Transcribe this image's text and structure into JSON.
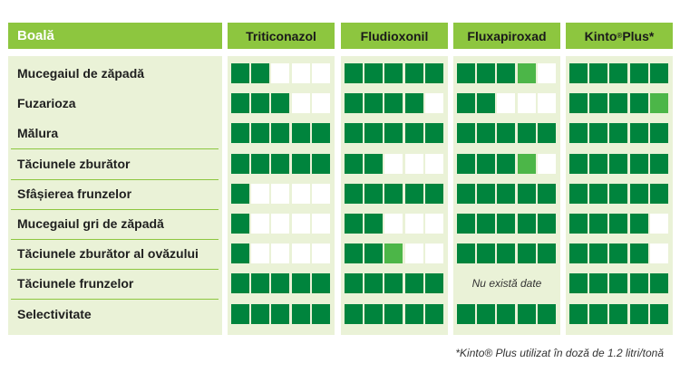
{
  "header": {
    "disease_label": "Boală",
    "products": [
      "Triticonazol",
      "Fludioxonil",
      "Fluxapiroxad",
      "Kinto® Plus*"
    ]
  },
  "rating_scale": {
    "max_blocks": 5
  },
  "colors": {
    "header_bg": "#8dc63f",
    "panel_bg": "#eaf2d7",
    "full": "#00843d",
    "partial": "#4cb648",
    "empty": "#ffffff"
  },
  "rows": [
    {
      "label": "Mucegaiul de zăpadă",
      "ratings": [
        2,
        5,
        3.5,
        5
      ]
    },
    {
      "label": "Fuzarioza",
      "ratings": [
        3,
        4,
        2,
        4.5
      ]
    },
    {
      "label": "Mălura",
      "ratings": [
        5,
        5,
        5,
        5
      ]
    },
    {
      "label": "Tăciunele zburător",
      "ratings": [
        5,
        2,
        3.5,
        5
      ]
    },
    {
      "label": "Sfâșierea frunzelor",
      "ratings": [
        1,
        5,
        5,
        5
      ]
    },
    {
      "label": "Mucegaiul gri de zăpadă",
      "ratings": [
        1,
        2,
        5,
        4
      ]
    },
    {
      "label": "Tăciunele zburător al ovăzului",
      "ratings": [
        1,
        2.5,
        5,
        4
      ]
    },
    {
      "label": "Tăciunele frunzelor",
      "ratings": [
        5,
        5,
        null,
        5
      ]
    },
    {
      "label": "Selectivitate",
      "ratings": [
        5,
        5,
        5,
        5
      ]
    }
  ],
  "no_data_text": "Nu există date",
  "footnote": "*Kinto® Plus utilizat în doză de 1.2 litri/tonă"
}
